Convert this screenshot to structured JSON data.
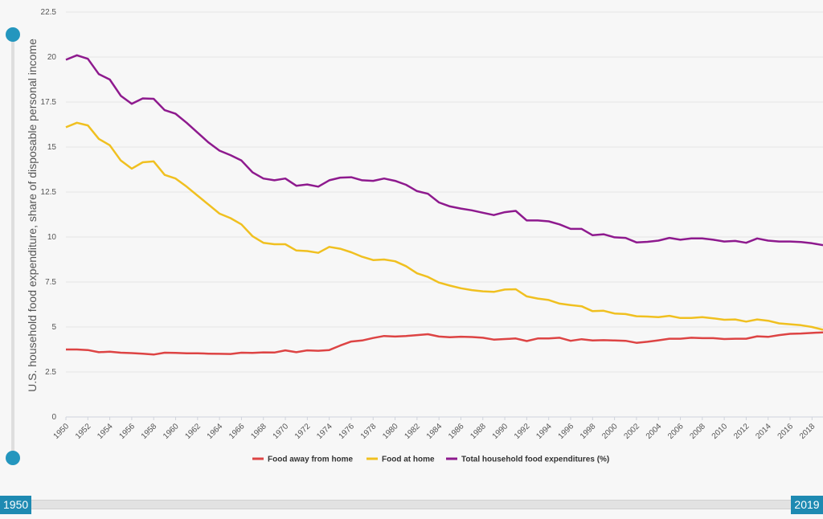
{
  "chart_data": {
    "type": "line",
    "ylabel": "U.S. household food expenditure, share of disposable personal income",
    "ylim": [
      0,
      22.5
    ],
    "xlim": [
      1950,
      2019
    ],
    "y_ticks": [
      "0",
      "2.5",
      "5",
      "7.5",
      "10",
      "12.5",
      "15",
      "17.5",
      "20",
      "22.5"
    ],
    "x_ticks": [
      "1950",
      "1952",
      "1954",
      "1956",
      "1958",
      "1960",
      "1962",
      "1964",
      "1966",
      "1968",
      "1970",
      "1972",
      "1974",
      "1976",
      "1978",
      "1980",
      "1982",
      "1984",
      "1986",
      "1988",
      "1990",
      "1992",
      "1994",
      "1996",
      "1998",
      "2000",
      "2002",
      "2004",
      "2006",
      "2008",
      "2010",
      "2012",
      "2014",
      "2016",
      "2018"
    ],
    "grid": true,
    "legend_position": "bottom",
    "x": [
      1950,
      1951,
      1952,
      1953,
      1954,
      1955,
      1956,
      1957,
      1958,
      1959,
      1960,
      1961,
      1962,
      1963,
      1964,
      1965,
      1966,
      1967,
      1968,
      1969,
      1970,
      1971,
      1972,
      1973,
      1974,
      1975,
      1976,
      1977,
      1978,
      1979,
      1980,
      1981,
      1982,
      1983,
      1984,
      1985,
      1986,
      1987,
      1988,
      1989,
      1990,
      1991,
      1992,
      1993,
      1994,
      1995,
      1996,
      1997,
      1998,
      1999,
      2000,
      2001,
      2002,
      2003,
      2004,
      2005,
      2006,
      2007,
      2008,
      2009,
      2010,
      2011,
      2012,
      2013,
      2014,
      2015,
      2016,
      2017,
      2018,
      2019
    ],
    "series": [
      {
        "name": "Food away from home",
        "color": "#dd4444",
        "values": [
          3.75,
          3.75,
          3.72,
          3.6,
          3.63,
          3.57,
          3.55,
          3.52,
          3.47,
          3.57,
          3.56,
          3.54,
          3.54,
          3.52,
          3.51,
          3.5,
          3.57,
          3.56,
          3.59,
          3.58,
          3.7,
          3.6,
          3.7,
          3.68,
          3.72,
          3.97,
          4.19,
          4.25,
          4.39,
          4.5,
          4.47,
          4.5,
          4.55,
          4.6,
          4.47,
          4.43,
          4.46,
          4.44,
          4.4,
          4.3,
          4.33,
          4.36,
          4.22,
          4.36,
          4.36,
          4.4,
          4.23,
          4.32,
          4.25,
          4.27,
          4.25,
          4.23,
          4.12,
          4.18,
          4.26,
          4.35,
          4.35,
          4.4,
          4.38,
          4.38,
          4.33,
          4.35,
          4.35,
          4.48,
          4.45,
          4.55,
          4.62,
          4.64,
          4.67,
          4.7
        ]
      },
      {
        "name": "Food at home",
        "color": "#f0c020",
        "values": [
          16.1,
          16.35,
          16.2,
          15.45,
          15.1,
          14.25,
          13.8,
          14.15,
          14.2,
          13.45,
          13.25,
          12.8,
          12.3,
          11.8,
          11.3,
          11.05,
          10.7,
          10.05,
          9.68,
          9.6,
          9.6,
          9.25,
          9.22,
          9.12,
          9.45,
          9.35,
          9.15,
          8.9,
          8.72,
          8.75,
          8.65,
          8.38,
          7.98,
          7.78,
          7.47,
          7.3,
          7.15,
          7.05,
          6.98,
          6.95,
          7.08,
          7.1,
          6.7,
          6.58,
          6.5,
          6.3,
          6.22,
          6.15,
          5.88,
          5.9,
          5.75,
          5.72,
          5.6,
          5.58,
          5.55,
          5.62,
          5.5,
          5.5,
          5.55,
          5.48,
          5.4,
          5.42,
          5.3,
          5.42,
          5.35,
          5.2,
          5.15,
          5.1,
          5.0,
          4.85
        ]
      },
      {
        "name": "Total household food expenditures (%)",
        "color": "#8e1a8e",
        "values": [
          19.85,
          20.1,
          19.9,
          19.05,
          18.75,
          17.85,
          17.4,
          17.7,
          17.68,
          17.05,
          16.85,
          16.35,
          15.8,
          15.25,
          14.8,
          14.55,
          14.25,
          13.6,
          13.25,
          13.15,
          13.25,
          12.85,
          12.92,
          12.8,
          13.15,
          13.3,
          13.32,
          13.15,
          13.12,
          13.25,
          13.12,
          12.9,
          12.55,
          12.4,
          11.92,
          11.7,
          11.58,
          11.48,
          11.35,
          11.22,
          11.38,
          11.45,
          10.92,
          10.92,
          10.87,
          10.7,
          10.45,
          10.45,
          10.1,
          10.15,
          9.98,
          9.95,
          9.7,
          9.73,
          9.8,
          9.95,
          9.85,
          9.92,
          9.92,
          9.85,
          9.75,
          9.78,
          9.68,
          9.92,
          9.8,
          9.75,
          9.75,
          9.72,
          9.65,
          9.55
        ]
      }
    ]
  },
  "slider": {
    "start_label": "1950",
    "end_label": "2019"
  }
}
